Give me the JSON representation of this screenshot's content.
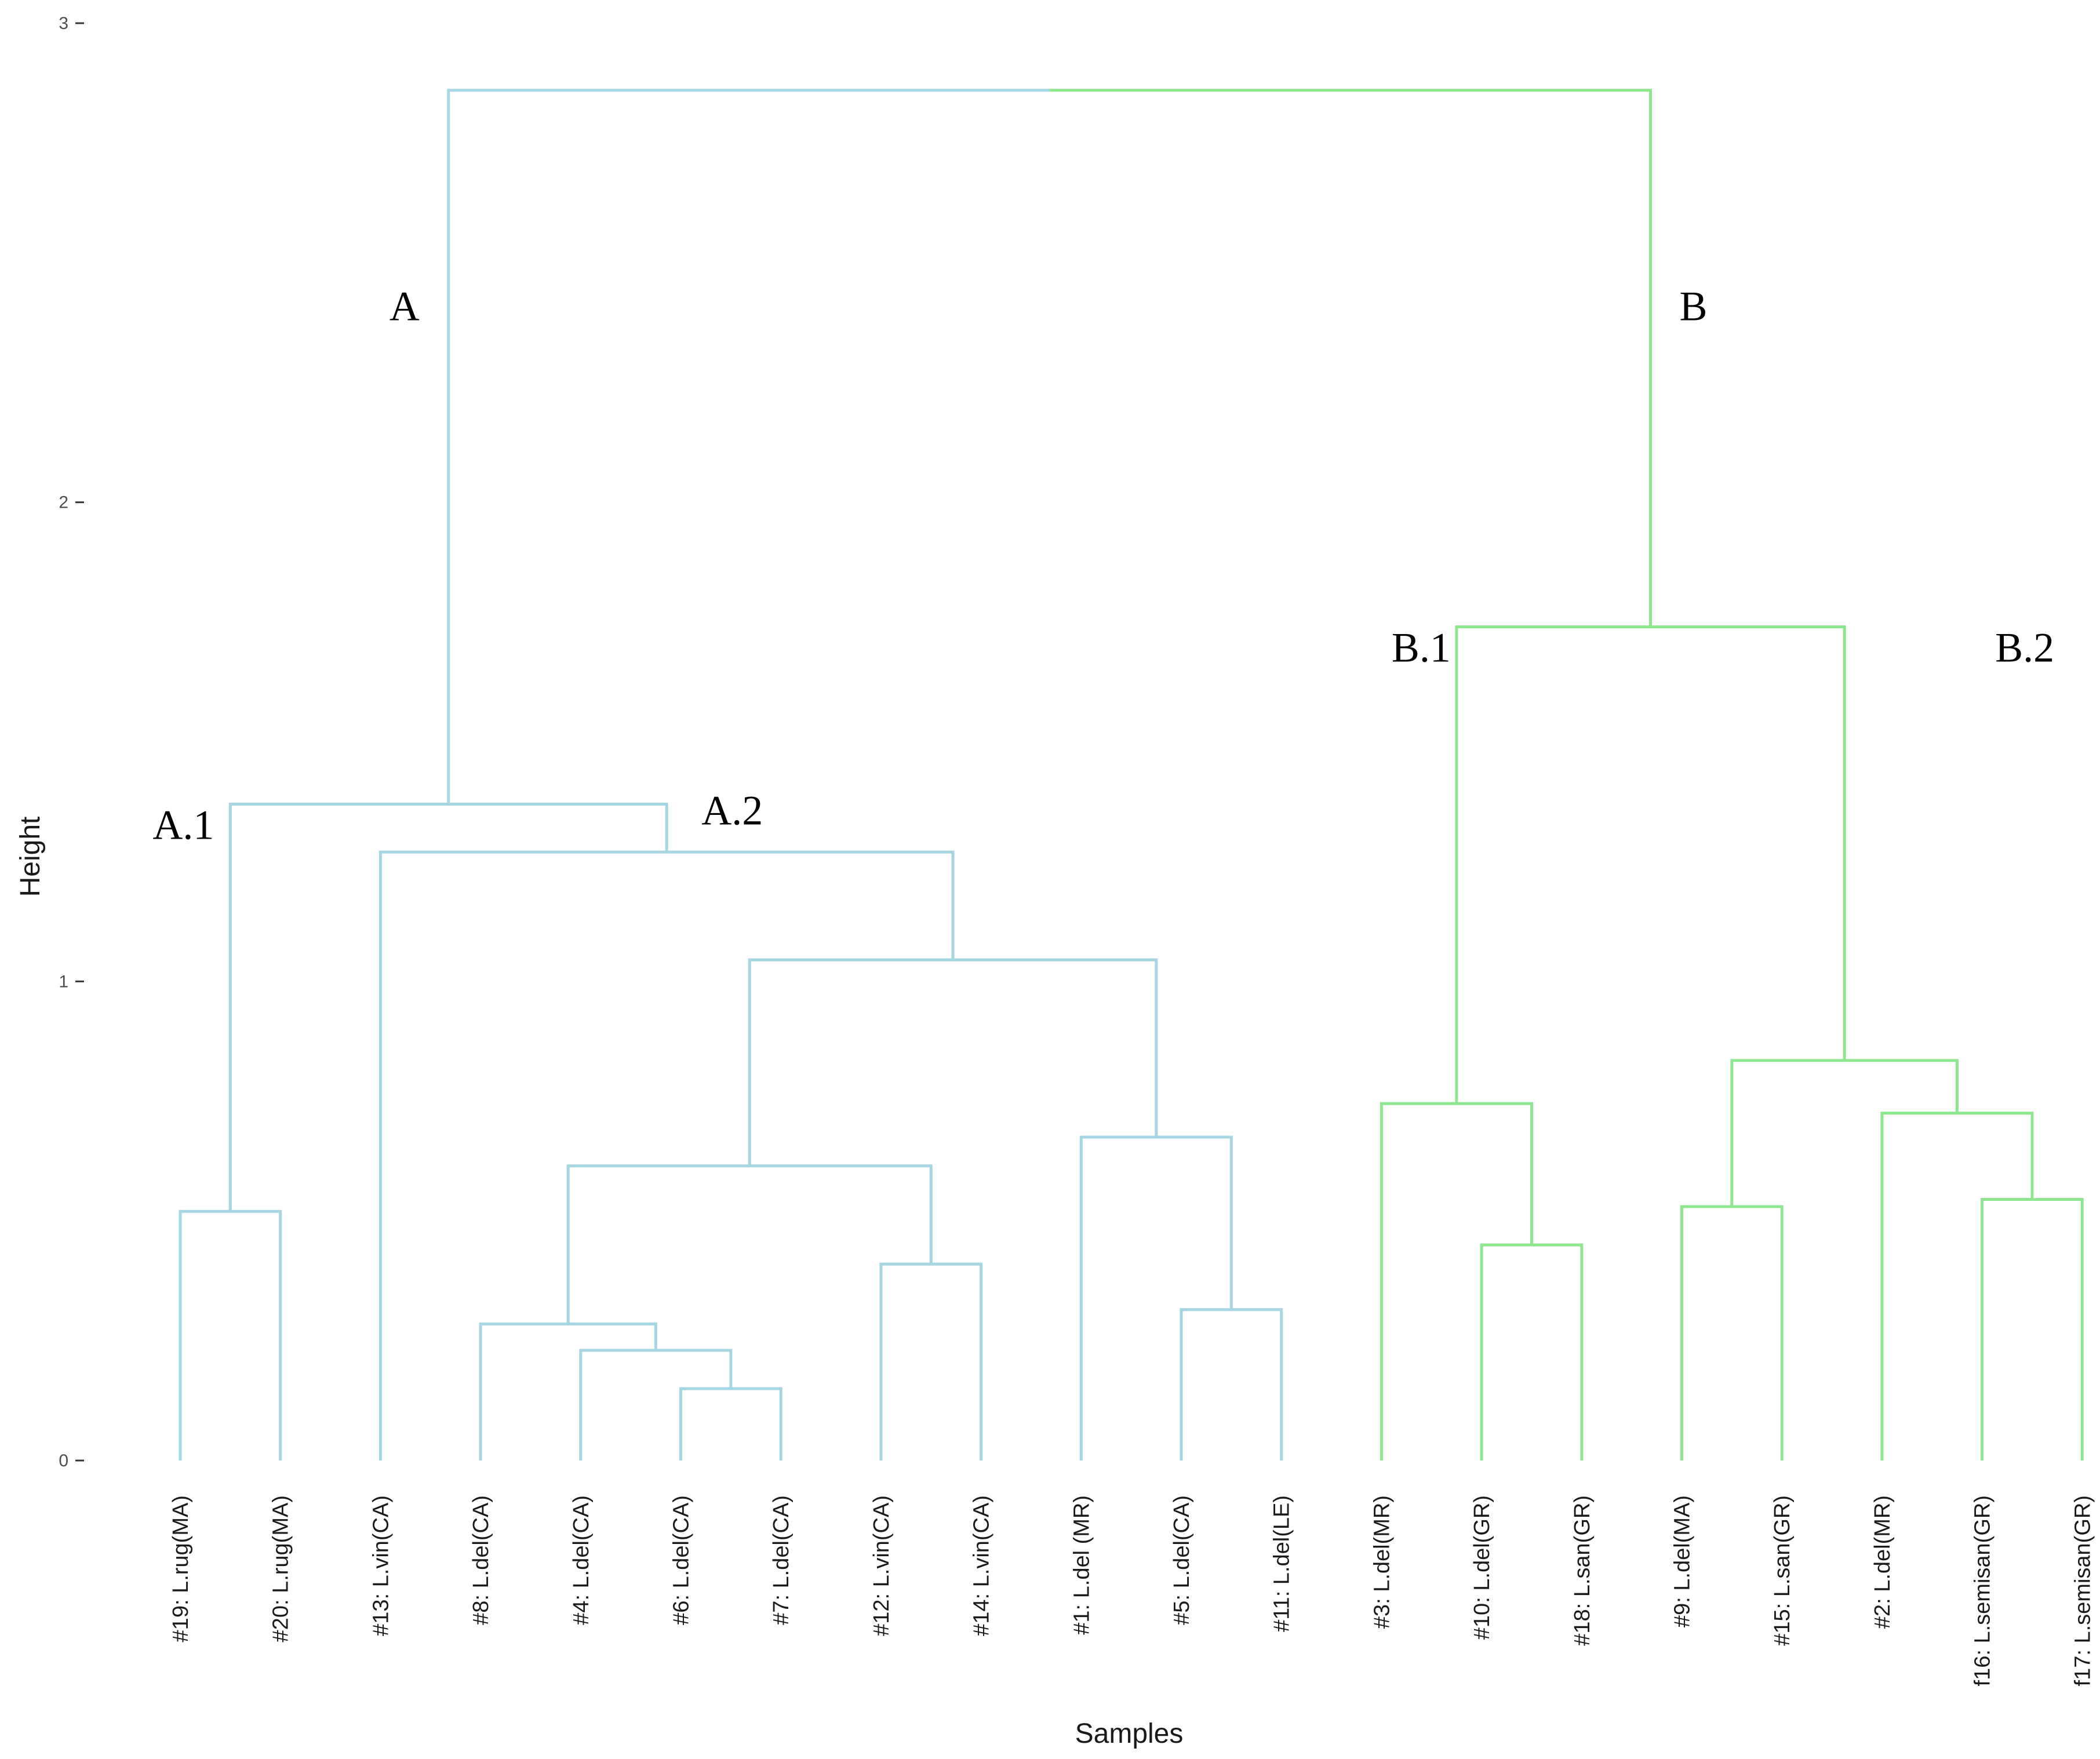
{
  "chart_data": {
    "type": "dendrogram",
    "title": "",
    "xlabel": "Samples",
    "ylabel": "Height",
    "ylim": [
      0,
      3
    ],
    "yticks": [
      "0",
      "1",
      "2",
      "3"
    ],
    "colors": {
      "A": "#a6d5e4",
      "B": "#8ee68e"
    },
    "leaves": [
      "#19: L.rug(MA)",
      "#20: L.rug(MA)",
      "#13: L.vin(CA)",
      "#8: L.del(CA)",
      "#4: L.del(CA)",
      "#6: L.del(CA)",
      "#7: L.del(CA)",
      "#12: L.vin(CA)",
      "#14: L.vin(CA)",
      "#1: L.del (MR)",
      "#5: L.del(CA)",
      "#11: L.del(LE)",
      "#3: L.del(MR)",
      "#10: L.del(GR)",
      "#18: L.san(GR)",
      "#9: L.del(MA)",
      "#15: L.san(GR)",
      "#2: L.del(MR)",
      "f16: L.semisan(GR)",
      "f17: L.semisan(GR)"
    ],
    "merges": [
      {
        "id": "m1",
        "left": 0,
        "right": 1,
        "height": 0.52,
        "cluster": "A"
      },
      {
        "id": "m2",
        "left": 5,
        "right": 6,
        "height": 0.15,
        "cluster": "A"
      },
      {
        "id": "m3",
        "left": 4,
        "right": "m2",
        "height": 0.23,
        "cluster": "A"
      },
      {
        "id": "m4",
        "left": 3,
        "right": "m3",
        "height": 0.285,
        "cluster": "A"
      },
      {
        "id": "m5",
        "left": 7,
        "right": 8,
        "height": 0.41,
        "cluster": "A"
      },
      {
        "id": "m6",
        "left": "m4",
        "right": "m5",
        "height": 0.615,
        "cluster": "A"
      },
      {
        "id": "m7",
        "left": 10,
        "right": 11,
        "height": 0.315,
        "cluster": "A"
      },
      {
        "id": "m8",
        "left": 9,
        "right": "m7",
        "height": 0.675,
        "cluster": "A"
      },
      {
        "id": "m9",
        "left": "m6",
        "right": "m8",
        "height": 1.045,
        "cluster": "A"
      },
      {
        "id": "m10",
        "left": 2,
        "right": "m9",
        "height": 1.27,
        "cluster": "A"
      },
      {
        "id": "m11",
        "left": "m1",
        "right": "m10",
        "height": 1.37,
        "cluster": "A"
      },
      {
        "id": "m12",
        "left": 13,
        "right": 14,
        "height": 0.45,
        "cluster": "B"
      },
      {
        "id": "m13",
        "left": 12,
        "right": "m12",
        "height": 0.745,
        "cluster": "B"
      },
      {
        "id": "m14",
        "left": 15,
        "right": 16,
        "height": 0.53,
        "cluster": "B"
      },
      {
        "id": "m15",
        "left": 18,
        "right": 19,
        "height": 0.545,
        "cluster": "B"
      },
      {
        "id": "m16",
        "left": 17,
        "right": "m15",
        "height": 0.725,
        "cluster": "B"
      },
      {
        "id": "m17",
        "left": "m14",
        "right": "m16",
        "height": 0.835,
        "cluster": "B"
      },
      {
        "id": "m18",
        "left": "m13",
        "right": "m17",
        "height": 1.74,
        "cluster": "B"
      },
      {
        "id": "m19",
        "left": "m11",
        "right": "m18",
        "height": 2.86,
        "cluster": "root"
      }
    ],
    "annotations": [
      {
        "text": "A",
        "node": "m11",
        "anchor": "upper-left"
      },
      {
        "text": "B",
        "node": "m18",
        "anchor": "upper-right"
      },
      {
        "text": "A.1",
        "node": "m1",
        "anchor": "top-left"
      },
      {
        "text": "A.2",
        "node": "m10",
        "anchor": "top-right"
      },
      {
        "text": "B.1",
        "node": "m13",
        "anchor": "top-left"
      },
      {
        "text": "B.2",
        "node": "m17",
        "anchor": "top-right"
      }
    ]
  }
}
